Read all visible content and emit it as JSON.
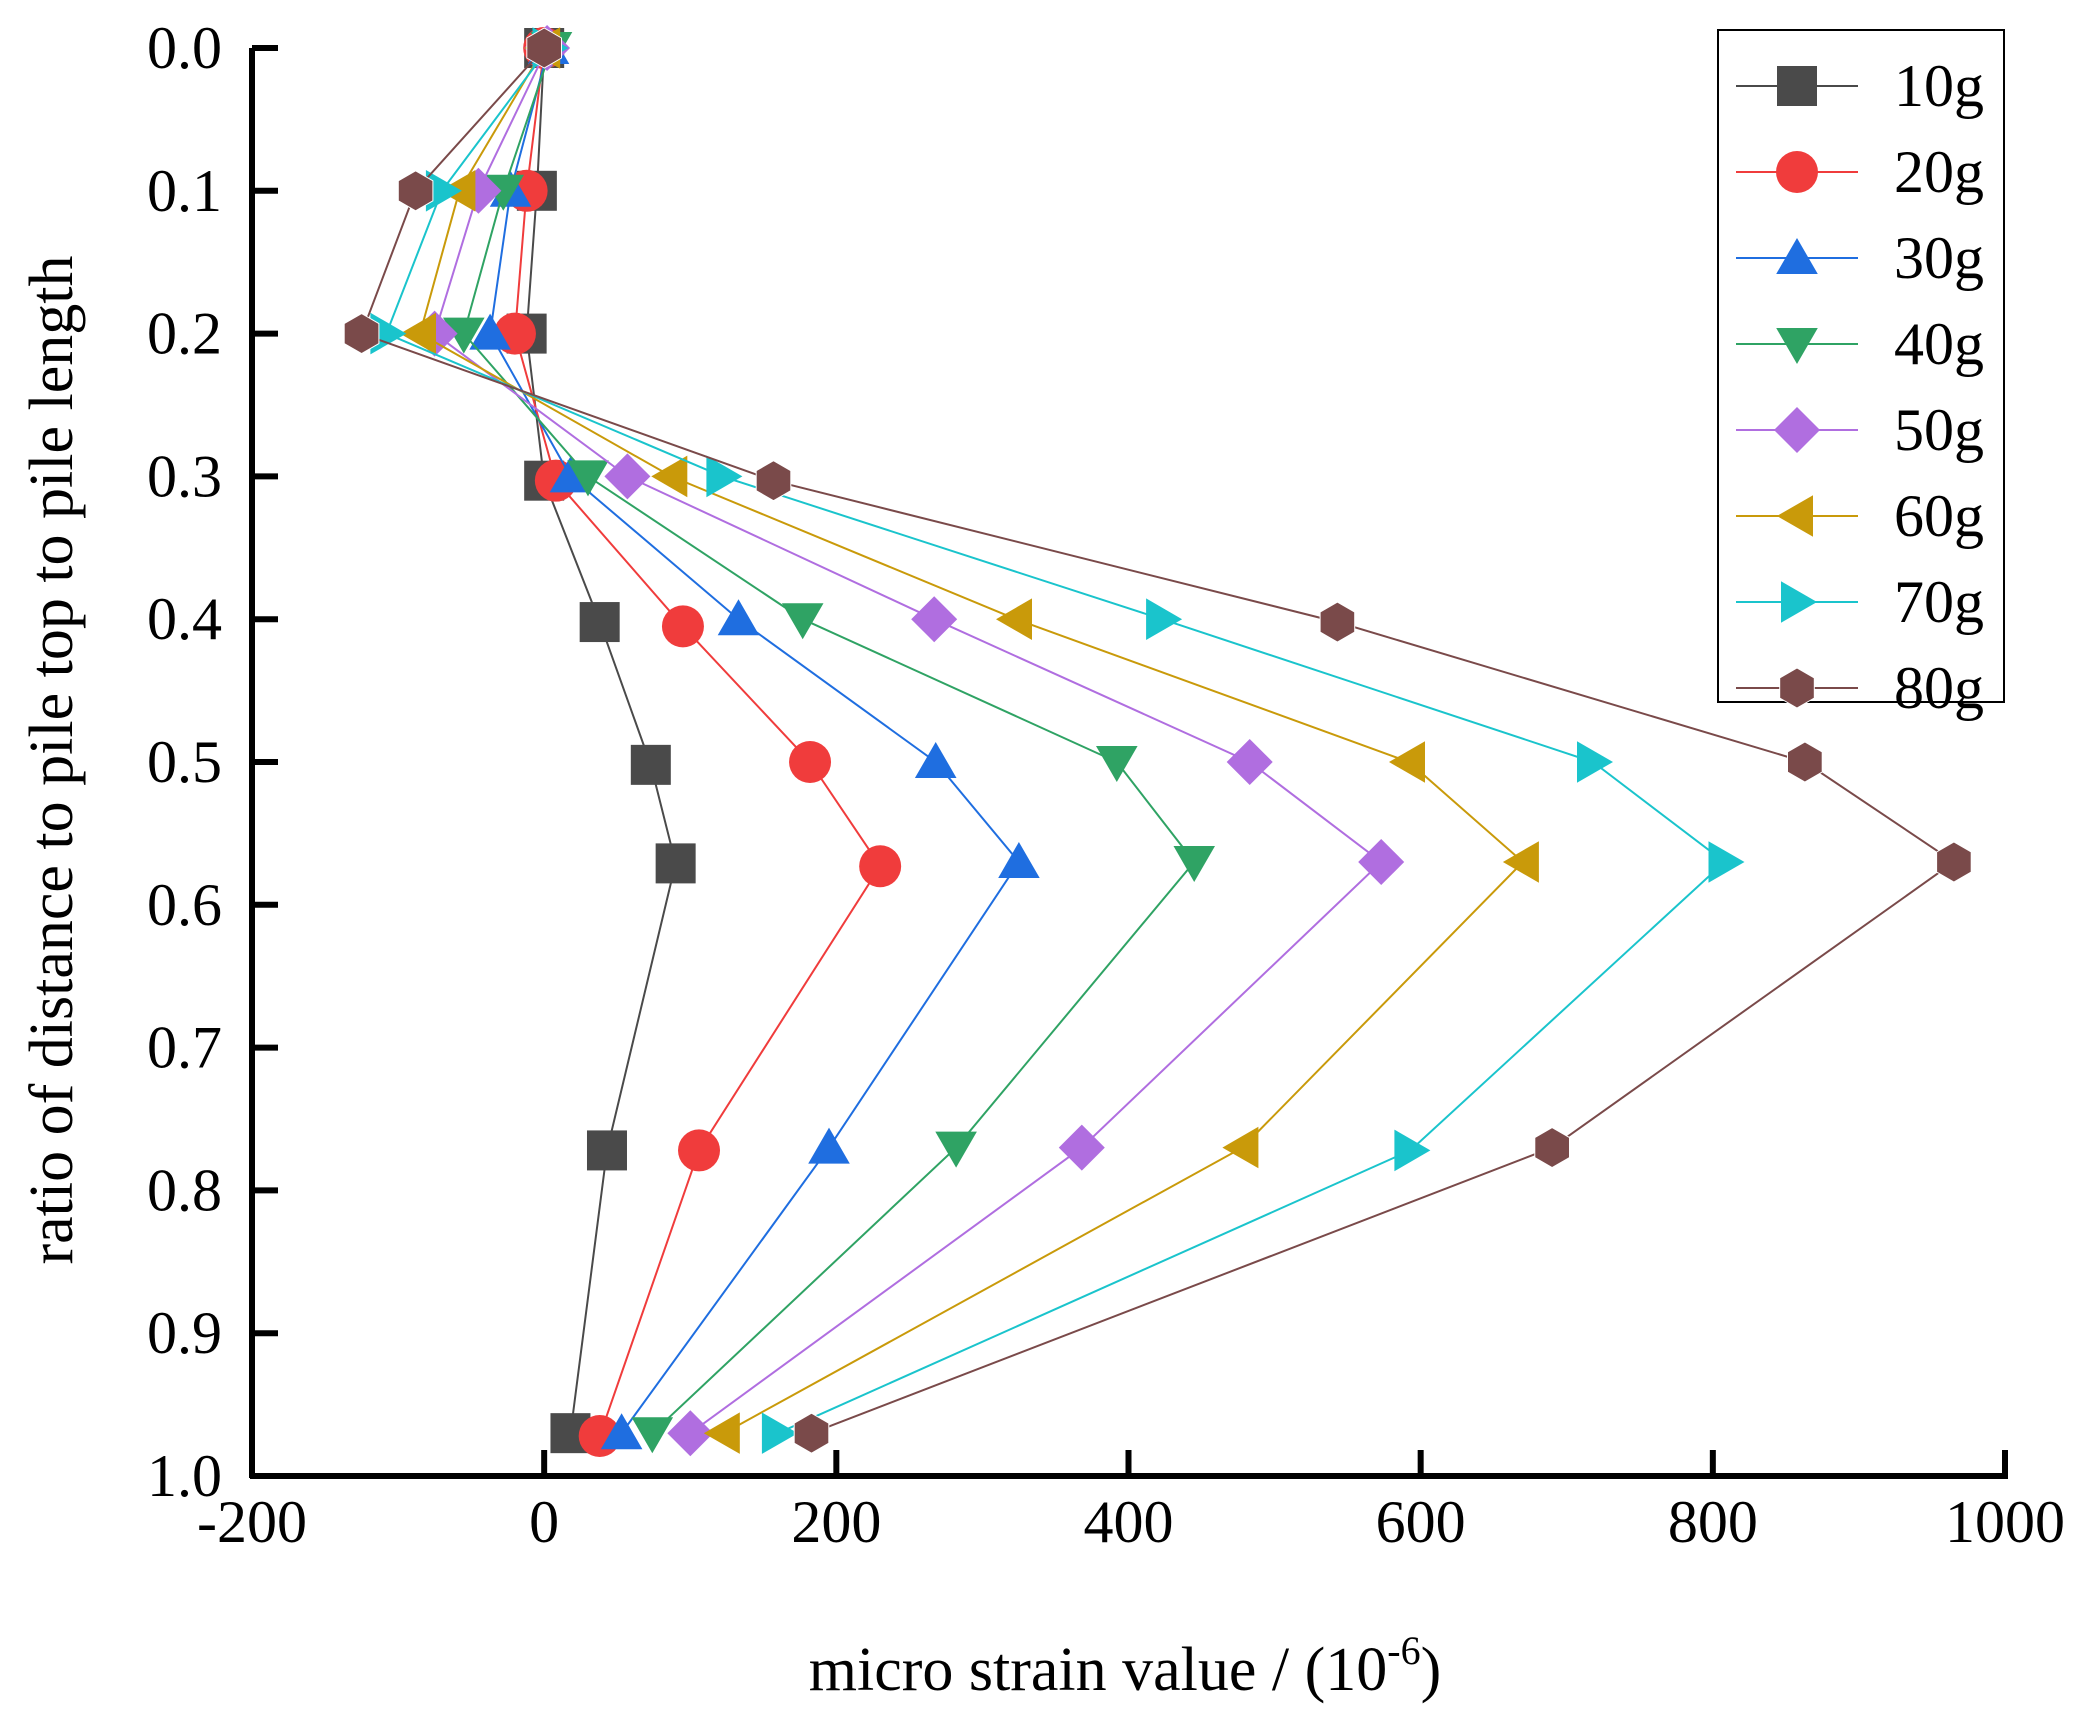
{
  "chart_data": {
    "type": "line",
    "title": "",
    "xlabel": "micro strain value / (10",
    "xlabel_exponent": "-6",
    "xlabel_suffix": ")",
    "ylabel": "ratio of distance to pile top to pile length",
    "xlim": [
      -200,
      1000
    ],
    "ylim": [
      0.0,
      1.0
    ],
    "y_inverted": true,
    "x_ticks": [
      -200,
      0,
      200,
      400,
      600,
      800,
      1000
    ],
    "x_tick_labels": [
      "-200",
      "0",
      "200",
      "400",
      "600",
      "800",
      "1000"
    ],
    "y_ticks": [
      0.0,
      0.1,
      0.2,
      0.3,
      0.4,
      0.5,
      0.6,
      0.7,
      0.8,
      0.9,
      1.0
    ],
    "y_tick_labels": [
      "0.0",
      "0.1",
      "0.2",
      "0.3",
      "0.4",
      "0.5",
      "0.6",
      "0.7",
      "0.8",
      "0.9",
      "1.0"
    ],
    "grid": false,
    "legend_position": "top-right",
    "series": [
      {
        "name": "10g",
        "color": "#4a4a4a",
        "marker": "square",
        "x": [
          0,
          -5,
          -12,
          0,
          38,
          73,
          90,
          43,
          18
        ],
        "y": [
          0.0,
          0.1,
          0.2,
          0.303,
          0.402,
          0.502,
          0.571,
          0.772,
          0.97
        ]
      },
      {
        "name": "20g",
        "color": "#f03c3c",
        "marker": "circle",
        "x": [
          0,
          -12,
          -20,
          8,
          95,
          182,
          230,
          106,
          38
        ],
        "y": [
          0.0,
          0.1,
          0.2,
          0.303,
          0.405,
          0.5,
          0.573,
          0.772,
          0.972
        ]
      },
      {
        "name": "30g",
        "color": "#1f6ee0",
        "marker": "triangle-up",
        "x": [
          3,
          -23,
          -37,
          18,
          133,
          268,
          325,
          195,
          53
        ],
        "y": [
          0.0,
          0.1,
          0.2,
          0.3,
          0.4,
          0.5,
          0.57,
          0.77,
          0.97
        ]
      },
      {
        "name": "40g",
        "color": "#2fa364",
        "marker": "triangle-down",
        "x": [
          5,
          -28,
          -55,
          30,
          177,
          392,
          445,
          282,
          74
        ],
        "y": [
          0.0,
          0.1,
          0.2,
          0.3,
          0.4,
          0.5,
          0.57,
          0.77,
          0.97
        ]
      },
      {
        "name": "50g",
        "color": "#b06ee0",
        "marker": "diamond",
        "x": [
          2,
          -45,
          -75,
          57,
          267,
          483,
          573,
          368,
          100
        ],
        "y": [
          0.0,
          0.1,
          0.2,
          0.3,
          0.4,
          0.5,
          0.57,
          0.77,
          0.97
        ]
      },
      {
        "name": "60g",
        "color": "#c99a0a",
        "marker": "triangle-left",
        "x": [
          0,
          -58,
          -85,
          87,
          323,
          592,
          670,
          478,
          123
        ],
        "y": [
          0.0,
          0.1,
          0.2,
          0.3,
          0.4,
          0.5,
          0.57,
          0.77,
          0.97
        ]
      },
      {
        "name": "70g",
        "color": "#1ac4cc",
        "marker": "triangle-right",
        "x": [
          3,
          -70,
          -108,
          122,
          423,
          718,
          808,
          593,
          160
        ],
        "y": [
          0.0,
          0.1,
          0.2,
          0.3,
          0.4,
          0.5,
          0.57,
          0.772,
          0.97
        ]
      },
      {
        "name": "80g",
        "color": "#7a4a4a",
        "marker": "hexagon",
        "x": [
          0,
          -88,
          -125,
          157,
          543,
          863,
          965,
          690,
          183
        ],
        "y": [
          0.0,
          0.1,
          0.2,
          0.303,
          0.402,
          0.5,
          0.57,
          0.77,
          0.97
        ]
      }
    ]
  }
}
